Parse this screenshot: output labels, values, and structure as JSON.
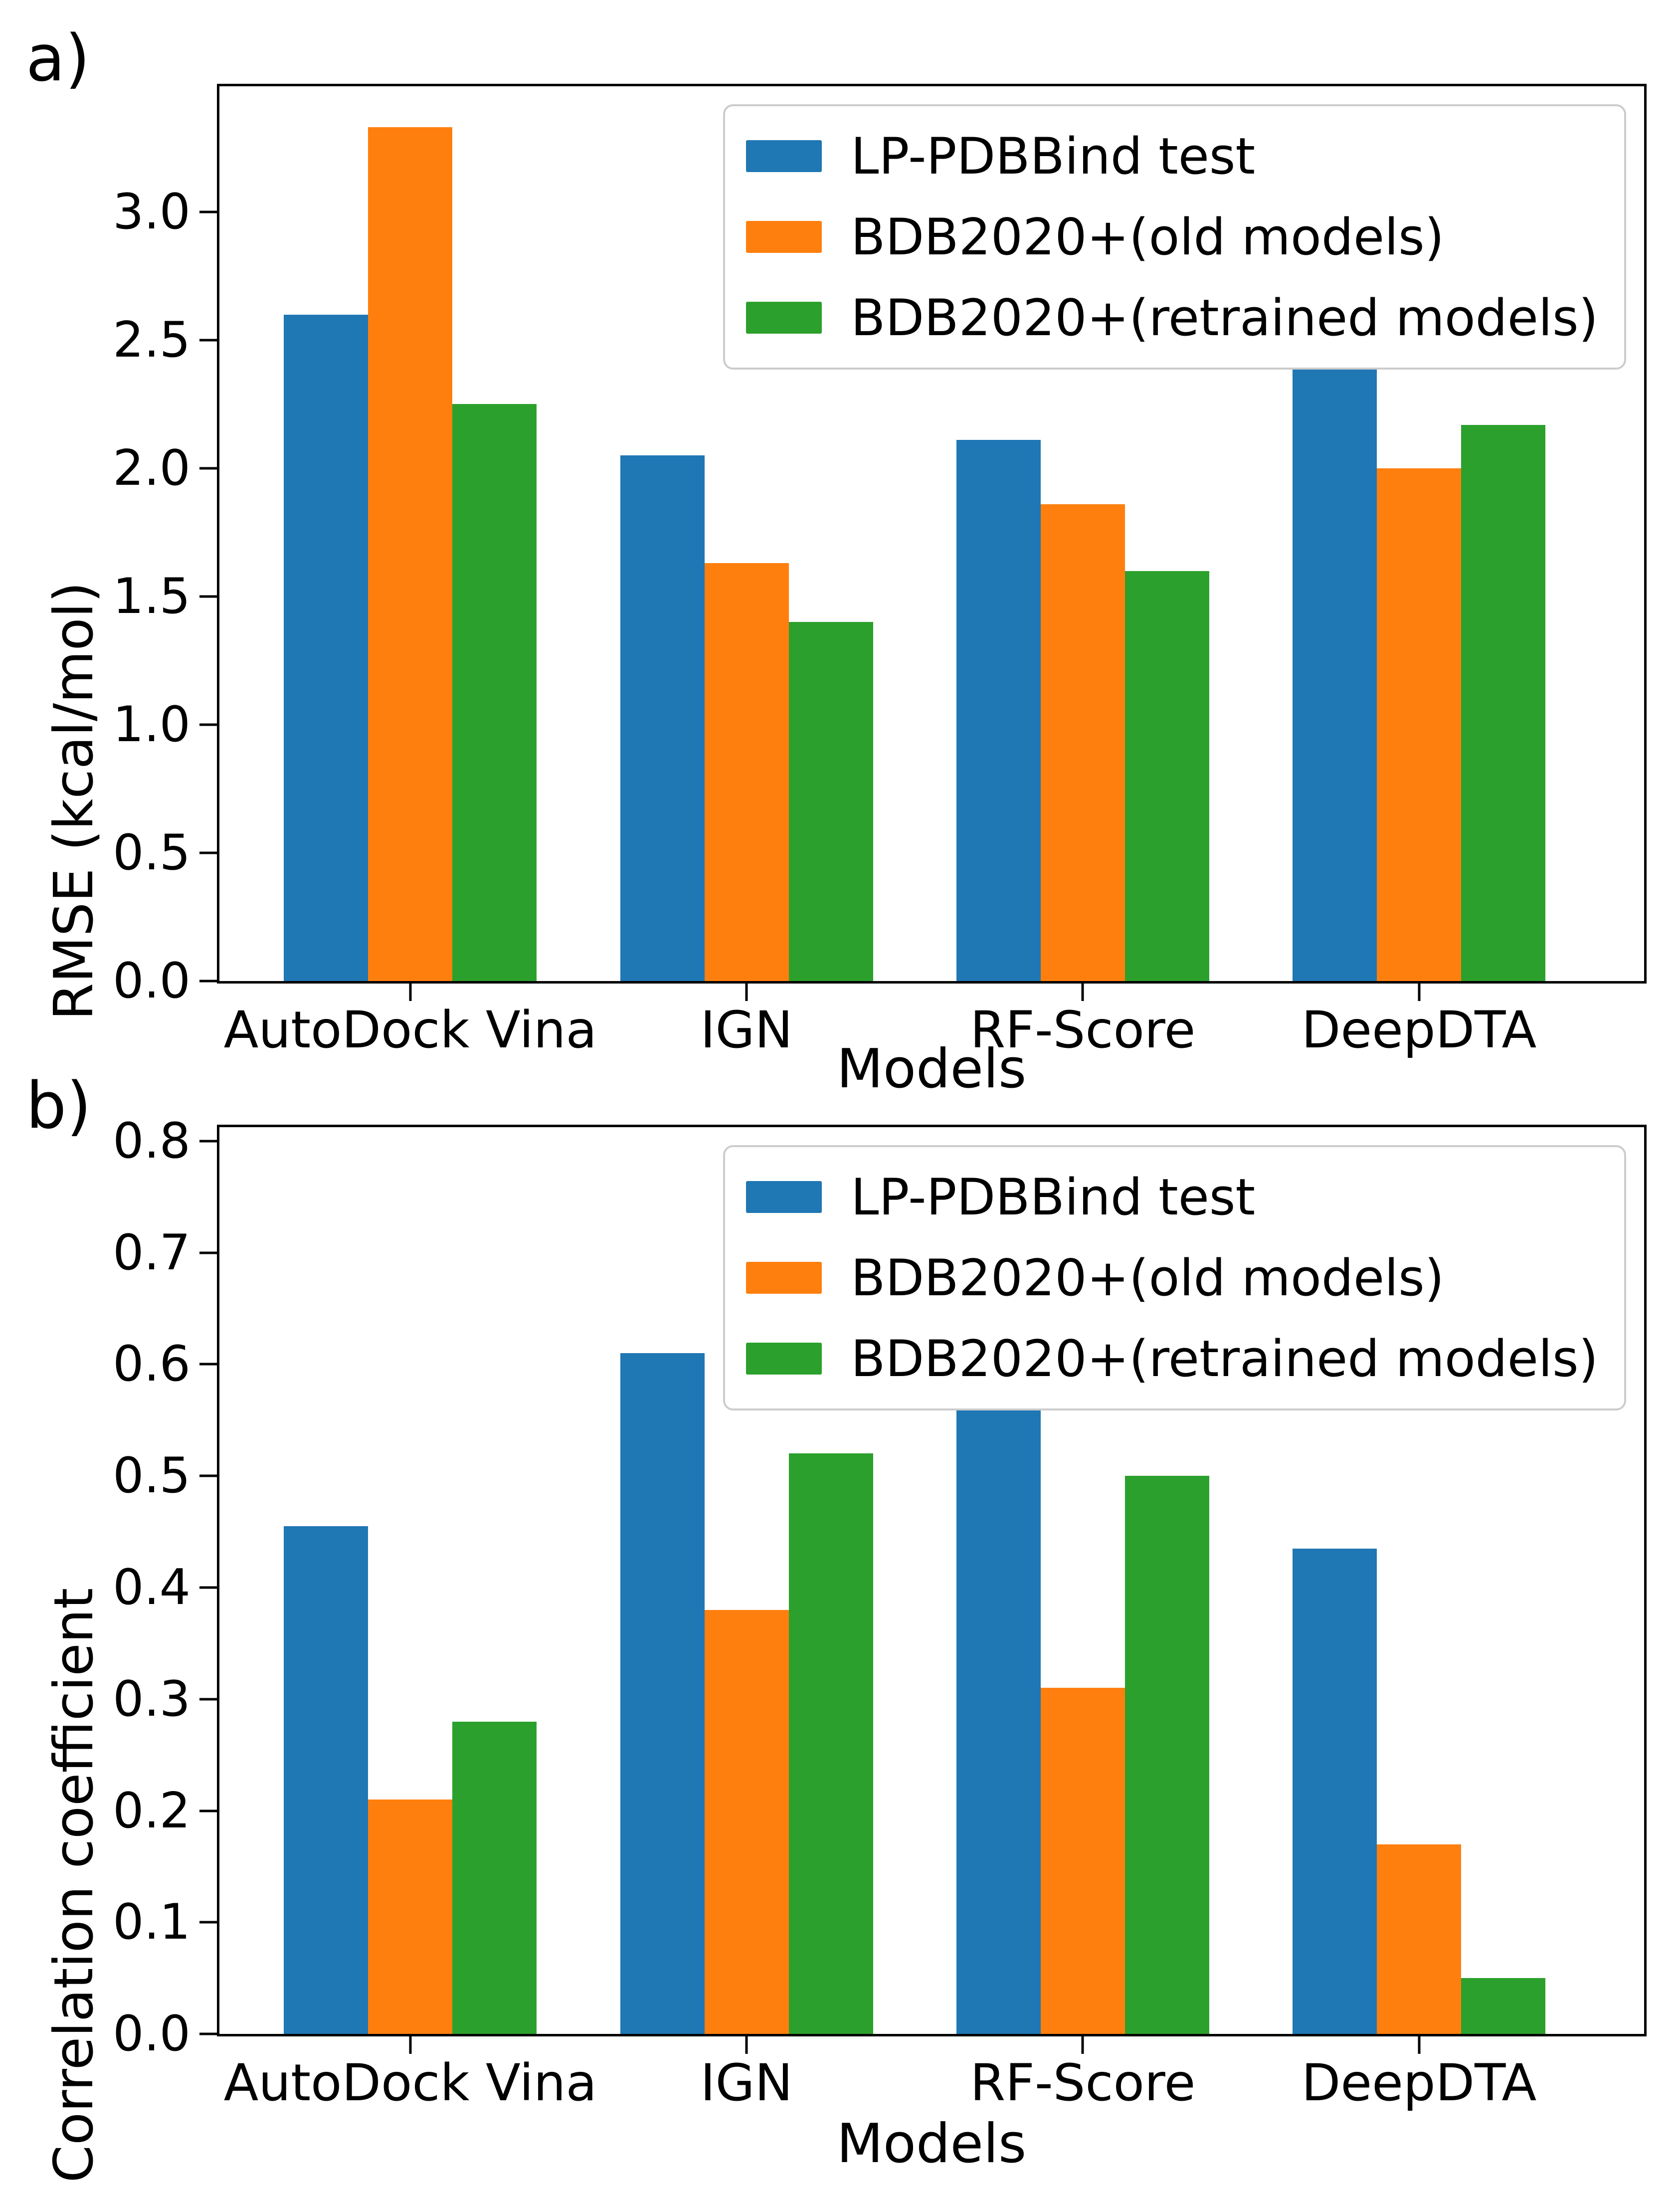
{
  "figure": {
    "background": "#ffffff",
    "panel_letters": [
      "a)",
      "b)"
    ]
  },
  "colors": {
    "series_blue": "#1f77b4",
    "series_orange": "#ff7f0e",
    "series_green": "#2ca02c",
    "axis": "#000000",
    "legend_border": "#cccccc"
  },
  "chart_data": [
    {
      "type": "bar",
      "panel_label": "a)",
      "xlabel": "Models",
      "ylabel": "RMSE (kcal/mol)",
      "categories": [
        "AutoDock Vina",
        "IGN",
        "RF-Score",
        "DeepDTA"
      ],
      "series": [
        {
          "name": "LP-PDBBind test",
          "color": "#1f77b4",
          "values": [
            2.6,
            2.05,
            2.11,
            2.45
          ]
        },
        {
          "name": "BDB2020+(old models)",
          "color": "#ff7f0e",
          "values": [
            3.33,
            1.63,
            1.86,
            2.0
          ]
        },
        {
          "name": "BDB2020+(retrained models)",
          "color": "#2ca02c",
          "values": [
            2.25,
            1.4,
            1.6,
            2.17
          ]
        }
      ],
      "ylim": [
        0,
        3.49
      ],
      "yticks": [
        0.0,
        0.5,
        1.0,
        1.5,
        2.0,
        2.5,
        3.0
      ],
      "ytick_decimals": 1,
      "legend_position": "upper right",
      "grid": false
    },
    {
      "type": "bar",
      "panel_label": "b)",
      "xlabel": "Models",
      "ylabel": "Correlation coefficient",
      "categories": [
        "AutoDock Vina",
        "IGN",
        "RF-Score",
        "DeepDTA"
      ],
      "series": [
        {
          "name": "LP-PDBBind test",
          "color": "#1f77b4",
          "values": [
            0.455,
            0.61,
            0.58,
            0.435
          ]
        },
        {
          "name": "BDB2020+(old models)",
          "color": "#ff7f0e",
          "values": [
            0.21,
            0.38,
            0.31,
            0.17
          ]
        },
        {
          "name": "BDB2020+(retrained models)",
          "color": "#2ca02c",
          "values": [
            0.28,
            0.52,
            0.5,
            0.05
          ]
        }
      ],
      "ylim": [
        0,
        0.8125
      ],
      "yticks": [
        0.0,
        0.1,
        0.2,
        0.3,
        0.4,
        0.5,
        0.6,
        0.7,
        0.8
      ],
      "ytick_decimals": 1,
      "legend_position": "upper right",
      "grid": false
    }
  ]
}
